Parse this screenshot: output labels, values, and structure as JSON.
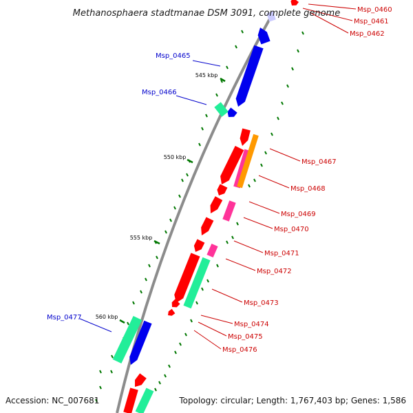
{
  "title": "Methanosphaera stadtmanae DSM 3091, complete genome",
  "accession": "Accession: NC_007681",
  "topology": "Topology: circular; Length: 1,767,403 bp; Genes: 1,586",
  "colors": {
    "backbone": "#8c8c8c",
    "forward_cds": "#0000ee",
    "reverse_cds": "#ff0000",
    "rna": "#22ee99",
    "pink_feature": "#ff3399",
    "orange_feature": "#ff9900",
    "ticks": "#007700",
    "label_blue": "#0000cc",
    "label_red": "#cc0000"
  },
  "scale_ticks": [
    {
      "label": "545 kbp"
    },
    {
      "label": "550 kbp"
    },
    {
      "label": "555 kbp"
    },
    {
      "label": "560 kbp"
    }
  ],
  "genes": [
    {
      "label": "Msp_0460",
      "strand": "reverse"
    },
    {
      "label": "Msp_0461",
      "strand": "reverse"
    },
    {
      "label": "Msp_0462",
      "strand": "reverse"
    },
    {
      "label": "Msp_0465",
      "strand": "forward"
    },
    {
      "label": "Msp_0466",
      "strand": "forward"
    },
    {
      "label": "Msp_0467",
      "strand": "reverse"
    },
    {
      "label": "Msp_0468",
      "strand": "reverse"
    },
    {
      "label": "Msp_0469",
      "strand": "reverse"
    },
    {
      "label": "Msp_0470",
      "strand": "reverse"
    },
    {
      "label": "Msp_0471",
      "strand": "reverse"
    },
    {
      "label": "Msp_0472",
      "strand": "reverse"
    },
    {
      "label": "Msp_0473",
      "strand": "reverse"
    },
    {
      "label": "Msp_0474",
      "strand": "reverse"
    },
    {
      "label": "Msp_0475",
      "strand": "reverse"
    },
    {
      "label": "Msp_0476",
      "strand": "reverse"
    },
    {
      "label": "Msp_0477",
      "strand": "forward"
    }
  ]
}
